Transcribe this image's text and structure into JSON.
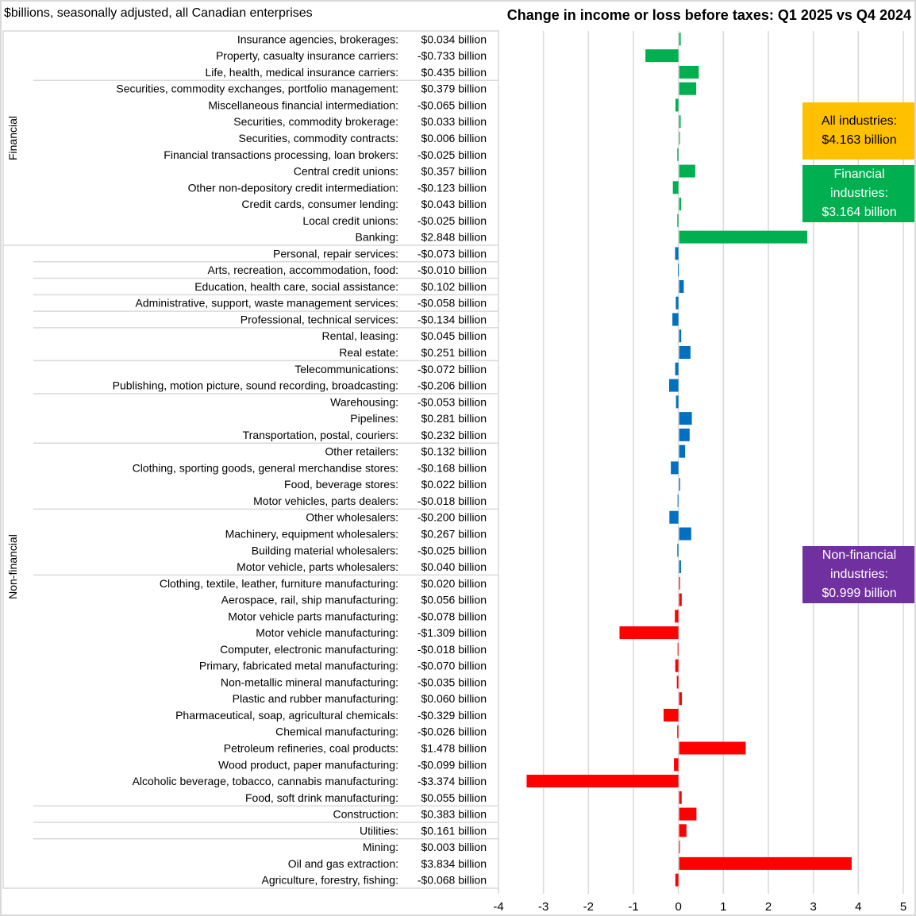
{
  "chart_data": {
    "type": "bar",
    "orientation": "horizontal",
    "title": "Change in income or loss before taxes: Q1 2025 vs Q4 2024",
    "subtitle": "$billions, seasonally adjusted, all Canadian enterprises",
    "xlim": [
      -4,
      5
    ],
    "xticks": [
      "-4",
      "-3",
      "-2",
      "-1",
      "0",
      "1",
      "2",
      "3",
      "4",
      "5"
    ],
    "grid": true,
    "groups": [
      {
        "name": "Financial",
        "color": "#00b050"
      },
      {
        "name": "Non-financial",
        "color": "#0070c0",
        "alt_color": "#ff0000"
      }
    ],
    "rows": [
      {
        "label": "Insurance agencies, brokerages:",
        "text": "$0.034 billion",
        "value": 0.034,
        "group": "Financial",
        "color": "#00b050"
      },
      {
        "label": "Property, casualty insurance carriers:",
        "text": "-$0.733 billion",
        "value": -0.733,
        "group": "Financial",
        "color": "#00b050"
      },
      {
        "label": "Life, health, medical insurance carriers:",
        "text": "$0.435 billion",
        "value": 0.435,
        "group": "Financial",
        "color": "#00b050",
        "sep": true
      },
      {
        "label": "Securities, commodity exchanges, portfolio management:",
        "text": "$0.379 billion",
        "value": 0.379,
        "group": "Financial",
        "color": "#00b050"
      },
      {
        "label": "Miscellaneous financial intermediation:",
        "text": "-$0.065 billion",
        "value": -0.065,
        "group": "Financial",
        "color": "#00b050"
      },
      {
        "label": "Securities, commodity brokerage:",
        "text": "$0.033 billion",
        "value": 0.033,
        "group": "Financial",
        "color": "#00b050"
      },
      {
        "label": "Securities, commodity contracts:",
        "text": "$0.006 billion",
        "value": 0.006,
        "group": "Financial",
        "color": "#00b050"
      },
      {
        "label": "Financial transactions processing, loan brokers:",
        "text": "-$0.025 billion",
        "value": -0.025,
        "group": "Financial",
        "color": "#00b050"
      },
      {
        "label": "Central credit unions:",
        "text": "$0.357 billion",
        "value": 0.357,
        "group": "Financial",
        "color": "#00b050"
      },
      {
        "label": "Other non-depository credit intermediation:",
        "text": "-$0.123 billion",
        "value": -0.123,
        "group": "Financial",
        "color": "#00b050"
      },
      {
        "label": "Credit cards, consumer lending:",
        "text": "$0.043 billion",
        "value": 0.043,
        "group": "Financial",
        "color": "#00b050"
      },
      {
        "label": "Local credit unions:",
        "text": "-$0.025 billion",
        "value": -0.025,
        "group": "Financial",
        "color": "#00b050"
      },
      {
        "label": "Banking:",
        "text": "$2.848 billion",
        "value": 2.848,
        "group": "Financial",
        "color": "#00b050",
        "fullsep": true
      },
      {
        "label": "Personal, repair services:",
        "text": "-$0.073 billion",
        "value": -0.073,
        "group": "Non-financial",
        "color": "#0070c0",
        "sep": true
      },
      {
        "label": "Arts, recreation, accommodation, food:",
        "text": "-$0.010 billion",
        "value": -0.01,
        "group": "Non-financial",
        "color": "#0070c0",
        "sep": true
      },
      {
        "label": "Education, health care, social assistance:",
        "text": "$0.102 billion",
        "value": 0.102,
        "group": "Non-financial",
        "color": "#0070c0",
        "sep": true
      },
      {
        "label": "Administrative, support, waste management services:",
        "text": "-$0.058 billion",
        "value": -0.058,
        "group": "Non-financial",
        "color": "#0070c0",
        "sep": true
      },
      {
        "label": "Professional, technical services:",
        "text": "-$0.134 billion",
        "value": -0.134,
        "group": "Non-financial",
        "color": "#0070c0",
        "sep": true
      },
      {
        "label": "Rental, leasing:",
        "text": "$0.045 billion",
        "value": 0.045,
        "group": "Non-financial",
        "color": "#0070c0"
      },
      {
        "label": "Real estate:",
        "text": "$0.251 billion",
        "value": 0.251,
        "group": "Non-financial",
        "color": "#0070c0",
        "sep": true
      },
      {
        "label": "Telecommunications:",
        "text": "-$0.072 billion",
        "value": -0.072,
        "group": "Non-financial",
        "color": "#0070c0"
      },
      {
        "label": "Publishing, motion picture, sound recording, broadcasting:",
        "text": "-$0.206 billion",
        "value": -0.206,
        "group": "Non-financial",
        "color": "#0070c0",
        "sep": true
      },
      {
        "label": "Warehousing:",
        "text": "-$0.053 billion",
        "value": -0.053,
        "group": "Non-financial",
        "color": "#0070c0"
      },
      {
        "label": "Pipelines:",
        "text": "$0.281 billion",
        "value": 0.281,
        "group": "Non-financial",
        "color": "#0070c0"
      },
      {
        "label": "Transportation, postal, couriers:",
        "text": "$0.232 billion",
        "value": 0.232,
        "group": "Non-financial",
        "color": "#0070c0",
        "sep": true
      },
      {
        "label": "Other retailers:",
        "text": "$0.132 billion",
        "value": 0.132,
        "group": "Non-financial",
        "color": "#0070c0"
      },
      {
        "label": "Clothing, sporting goods, general merchandise stores:",
        "text": "-$0.168 billion",
        "value": -0.168,
        "group": "Non-financial",
        "color": "#0070c0"
      },
      {
        "label": "Food, beverage stores:",
        "text": "$0.022 billion",
        "value": 0.022,
        "group": "Non-financial",
        "color": "#0070c0"
      },
      {
        "label": "Motor vehicles, parts dealers:",
        "text": "-$0.018 billion",
        "value": -0.018,
        "group": "Non-financial",
        "color": "#0070c0",
        "sep": true
      },
      {
        "label": "Other wholesalers:",
        "text": "-$0.200 billion",
        "value": -0.2,
        "group": "Non-financial",
        "color": "#0070c0"
      },
      {
        "label": "Machinery, equipment wholesalers:",
        "text": "$0.267 billion",
        "value": 0.267,
        "group": "Non-financial",
        "color": "#0070c0"
      },
      {
        "label": "Building material wholesalers:",
        "text": "-$0.025 billion",
        "value": -0.025,
        "group": "Non-financial",
        "color": "#0070c0"
      },
      {
        "label": "Motor vehicle, parts wholesalers:",
        "text": "$0.040 billion",
        "value": 0.04,
        "group": "Non-financial",
        "color": "#0070c0",
        "sep": true
      },
      {
        "label": "Clothing, textile, leather, furniture manufacturing:",
        "text": "$0.020 billion",
        "value": 0.02,
        "group": "Non-financial",
        "color": "#ff0000"
      },
      {
        "label": "Aerospace, rail, ship manufacturing:",
        "text": "$0.056 billion",
        "value": 0.056,
        "group": "Non-financial",
        "color": "#ff0000"
      },
      {
        "label": "Motor vehicle parts manufacturing:",
        "text": "-$0.078 billion",
        "value": -0.078,
        "group": "Non-financial",
        "color": "#ff0000"
      },
      {
        "label": "Motor vehicle manufacturing:",
        "text": "-$1.309 billion",
        "value": -1.309,
        "group": "Non-financial",
        "color": "#ff0000"
      },
      {
        "label": "Computer, electronic manufacturing:",
        "text": "-$0.018 billion",
        "value": -0.018,
        "group": "Non-financial",
        "color": "#ff0000"
      },
      {
        "label": "Primary, fabricated metal manufacturing:",
        "text": "-$0.070 billion",
        "value": -0.07,
        "group": "Non-financial",
        "color": "#ff0000"
      },
      {
        "label": "Non-metallic mineral manufacturing:",
        "text": "-$0.035 billion",
        "value": -0.035,
        "group": "Non-financial",
        "color": "#ff0000"
      },
      {
        "label": "Plastic and rubber manufacturing:",
        "text": "$0.060 billion",
        "value": 0.06,
        "group": "Non-financial",
        "color": "#ff0000"
      },
      {
        "label": "Pharmaceutical, soap, agricultural chemicals:",
        "text": "-$0.329 billion",
        "value": -0.329,
        "group": "Non-financial",
        "color": "#ff0000"
      },
      {
        "label": "Chemical manufacturing:",
        "text": "-$0.026 billion",
        "value": -0.026,
        "group": "Non-financial",
        "color": "#ff0000"
      },
      {
        "label": "Petroleum refineries, coal products:",
        "text": "$1.478 billion",
        "value": 1.478,
        "group": "Non-financial",
        "color": "#ff0000"
      },
      {
        "label": "Wood product, paper manufacturing:",
        "text": "-$0.099 billion",
        "value": -0.099,
        "group": "Non-financial",
        "color": "#ff0000"
      },
      {
        "label": "Alcoholic beverage, tobacco, cannabis manufacturing:",
        "text": "-$3.374 billion",
        "value": -3.374,
        "group": "Non-financial",
        "color": "#ff0000"
      },
      {
        "label": "Food, soft drink manufacturing:",
        "text": "$0.055 billion",
        "value": 0.055,
        "group": "Non-financial",
        "color": "#ff0000",
        "sep": true
      },
      {
        "label": "Construction:",
        "text": "$0.383 billion",
        "value": 0.383,
        "group": "Non-financial",
        "color": "#ff0000",
        "sep": true
      },
      {
        "label": "Utilities:",
        "text": "$0.161 billion",
        "value": 0.161,
        "group": "Non-financial",
        "color": "#ff0000",
        "sep": true
      },
      {
        "label": "Mining:",
        "text": "$0.003 billion",
        "value": 0.003,
        "group": "Non-financial",
        "color": "#ff0000"
      },
      {
        "label": "Oil and gas extraction:",
        "text": "$3.834 billion",
        "value": 3.834,
        "group": "Non-financial",
        "color": "#ff0000"
      },
      {
        "label": "Agriculture, forestry, fishing:",
        "text": "-$0.068 billion",
        "value": -0.068,
        "group": "Non-financial",
        "color": "#ff0000"
      }
    ],
    "annotations": [
      {
        "lines": [
          "All industries:",
          "$4.163 billion"
        ],
        "bg": "#ffc000",
        "fg": "#000000"
      },
      {
        "lines": [
          "Financial",
          "industries:",
          "$3.164 billion"
        ],
        "bg": "#00b050",
        "fg": "#ffffff"
      },
      {
        "lines": [
          "Non-financial",
          "industries:",
          "$0.999 billion"
        ],
        "bg": "#7030a0",
        "fg": "#ffffff"
      }
    ]
  }
}
